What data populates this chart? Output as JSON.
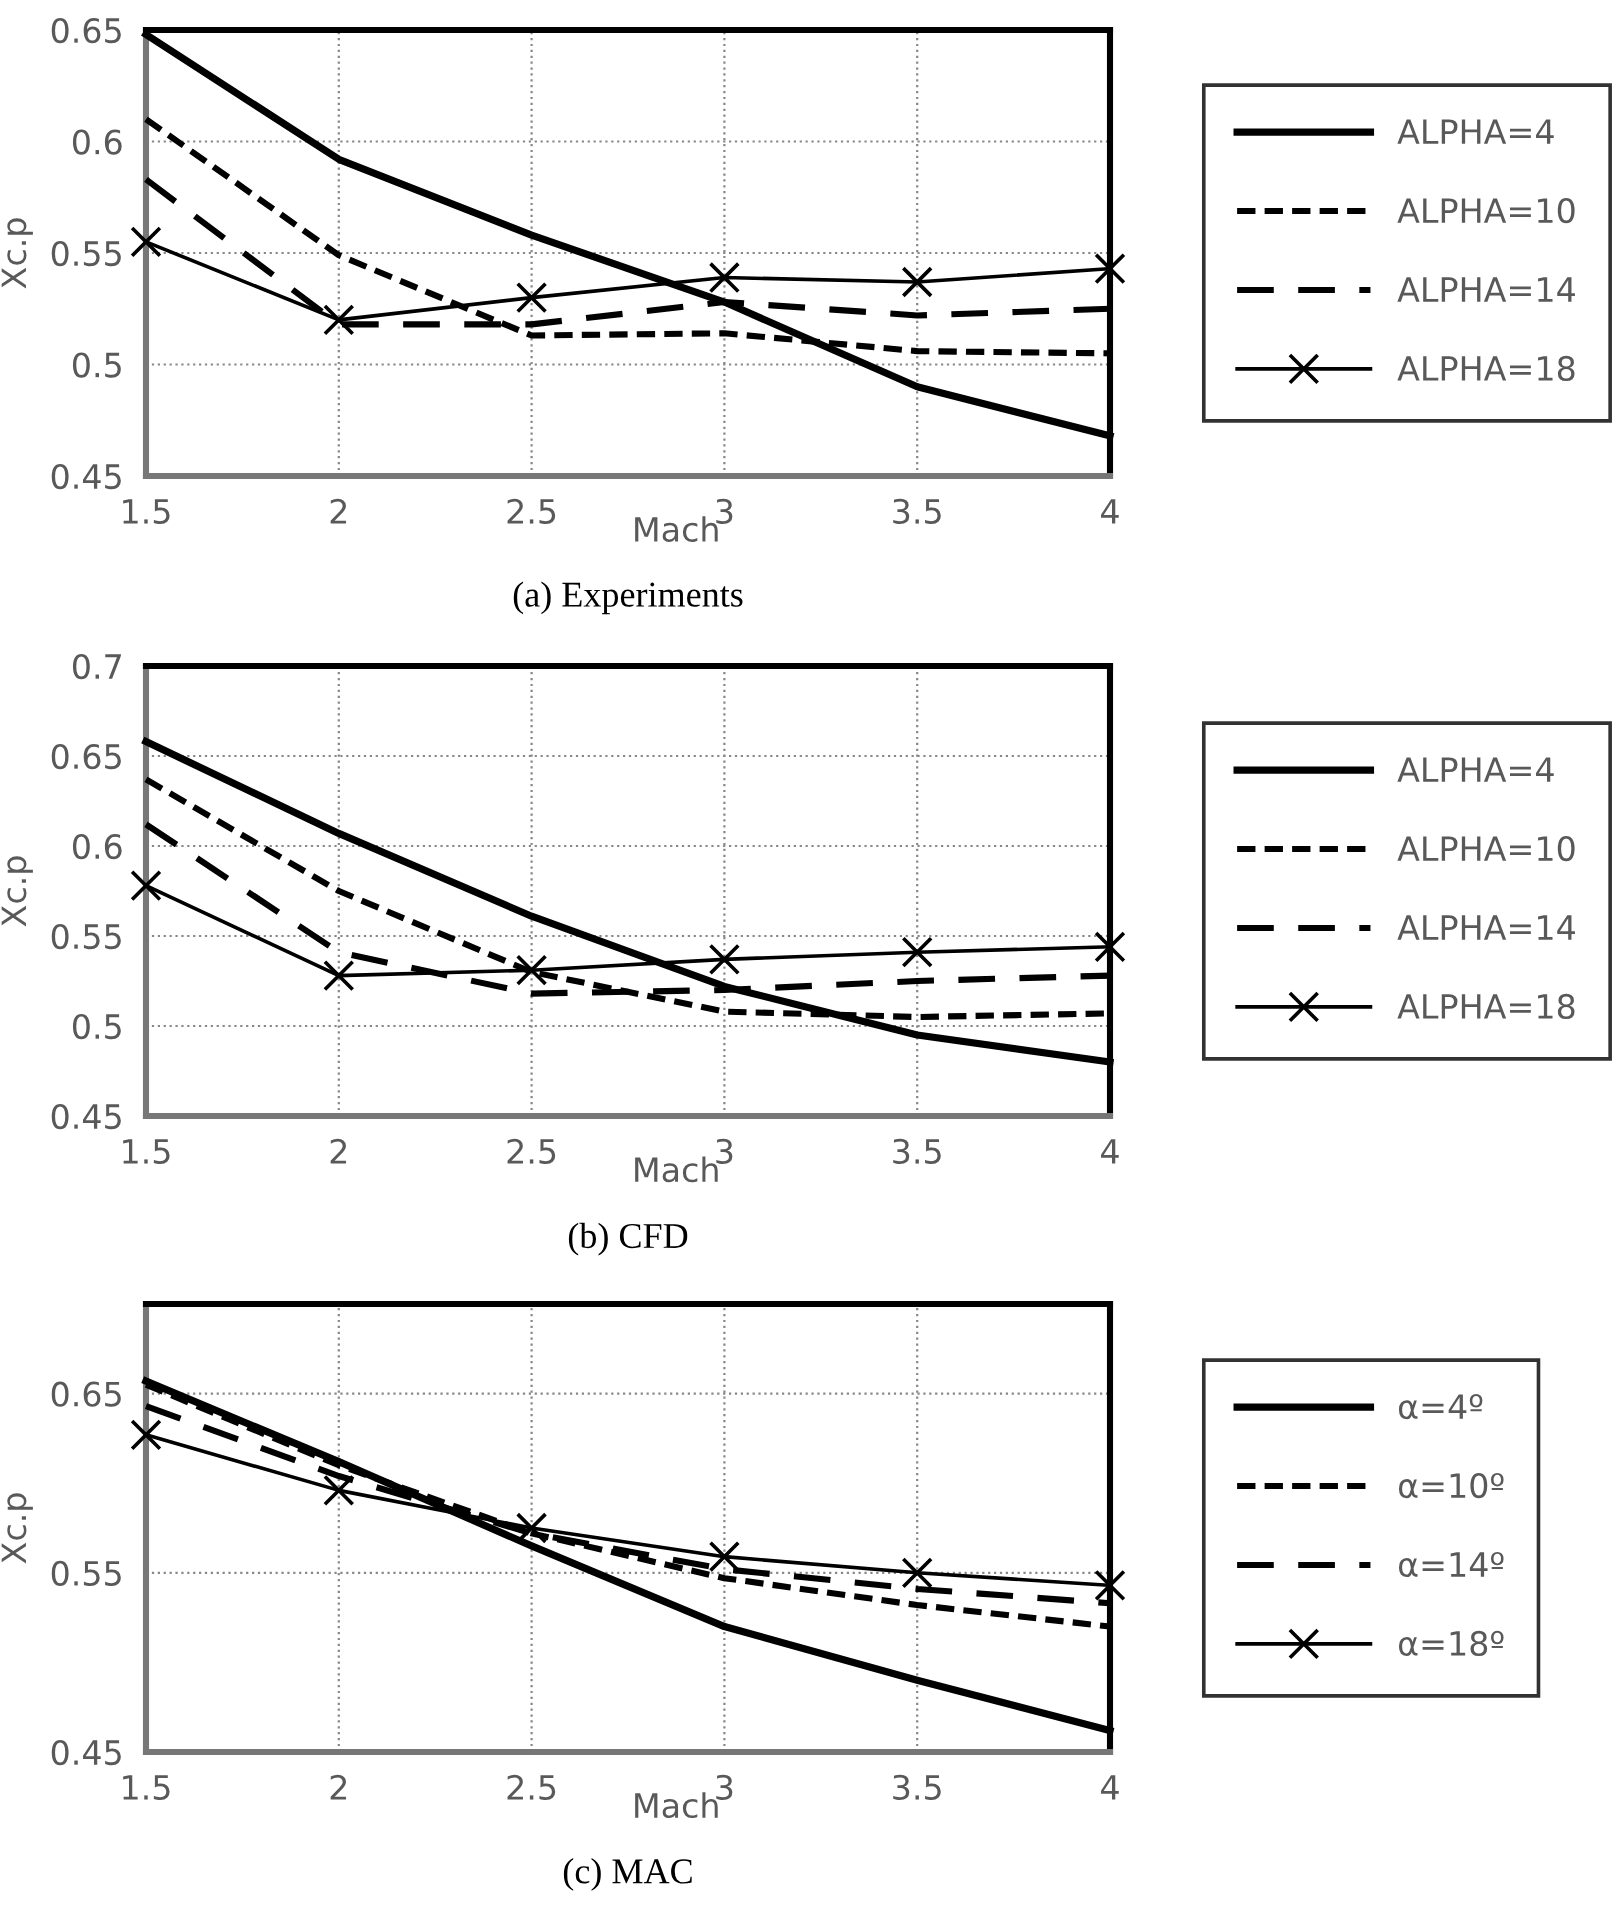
{
  "chart_data": [
    {
      "type": "line",
      "title": "(a) Experiments",
      "xlabel": "Mach",
      "ylabel": "Xc.p",
      "x": [
        1.5,
        2,
        2.5,
        3,
        3.5,
        4
      ],
      "xlim": [
        1.5,
        4
      ],
      "xticks": [
        1.5,
        2,
        2.5,
        3,
        3.5,
        4
      ],
      "ylim": [
        0.45,
        0.65
      ],
      "yticks": [
        0.45,
        0.5,
        0.55,
        0.6,
        0.65
      ],
      "grid": true,
      "legend": "right",
      "series": [
        {
          "name": "ALPHA=4",
          "color": "#000000",
          "line_style": "solid",
          "marker": "none",
          "values": [
            0.648,
            0.592,
            0.558,
            0.528,
            0.49,
            0.468
          ]
        },
        {
          "name": "ALPHA=10",
          "color": "#000000",
          "line_style": "dotted",
          "marker": "none",
          "values": [
            0.61,
            0.549,
            0.513,
            0.514,
            0.506,
            0.505
          ]
        },
        {
          "name": "ALPHA=14",
          "color": "#000000",
          "line_style": "dashed",
          "marker": "none",
          "values": [
            0.583,
            0.518,
            0.518,
            0.528,
            0.522,
            0.525
          ]
        },
        {
          "name": "ALPHA=18",
          "color": "#000000",
          "line_style": "solid",
          "marker": "cross",
          "values": [
            0.555,
            0.52,
            0.53,
            0.539,
            0.537,
            0.543
          ]
        }
      ]
    },
    {
      "type": "line",
      "title": "(b) CFD",
      "xlabel": "Mach",
      "ylabel": "Xc.p",
      "x": [
        1.5,
        2,
        2.5,
        3,
        3.5,
        4
      ],
      "xlim": [
        1.5,
        4
      ],
      "xticks": [
        1.5,
        2,
        2.5,
        3,
        3.5,
        4
      ],
      "ylim": [
        0.45,
        0.7
      ],
      "yticks": [
        0.45,
        0.5,
        0.55,
        0.6,
        0.65,
        0.7
      ],
      "grid": true,
      "legend": "right",
      "series": [
        {
          "name": "ALPHA=4",
          "color": "#000000",
          "line_style": "solid",
          "marker": "none",
          "values": [
            0.658,
            0.607,
            0.561,
            0.522,
            0.495,
            0.48
          ]
        },
        {
          "name": "ALPHA=10",
          "color": "#000000",
          "line_style": "dotted",
          "marker": "none",
          "values": [
            0.637,
            0.575,
            0.53,
            0.508,
            0.505,
            0.507
          ]
        },
        {
          "name": "ALPHA=14",
          "color": "#000000",
          "line_style": "dashed",
          "marker": "none",
          "values": [
            0.612,
            0.541,
            0.518,
            0.52,
            0.525,
            0.528
          ]
        },
        {
          "name": "ALPHA=18",
          "color": "#000000",
          "line_style": "solid",
          "marker": "cross",
          "values": [
            0.578,
            0.528,
            0.531,
            0.537,
            0.541,
            0.544
          ]
        }
      ]
    },
    {
      "type": "line",
      "title": "(c) MAC",
      "xlabel": "Mach",
      "ylabel": "Xc.p",
      "x": [
        1.5,
        2,
        2.5,
        3,
        3.5,
        4
      ],
      "xlim": [
        1.5,
        4
      ],
      "xticks": [
        1.5,
        2,
        2.5,
        3,
        3.5,
        4
      ],
      "ylim": [
        0.45,
        0.7
      ],
      "yticks": [
        0.45,
        0.55,
        0.65
      ],
      "grid": true,
      "legend": "right",
      "series": [
        {
          "name": "α=4º",
          "color": "#000000",
          "line_style": "solid",
          "marker": "none",
          "values": [
            0.657,
            0.612,
            0.565,
            0.52,
            0.49,
            0.462
          ]
        },
        {
          "name": "α=10º",
          "color": "#000000",
          "line_style": "dotted",
          "marker": "none",
          "values": [
            0.655,
            0.61,
            0.572,
            0.547,
            0.532,
            0.52
          ]
        },
        {
          "name": "α=14º",
          "color": "#000000",
          "line_style": "dashed",
          "marker": "none",
          "values": [
            0.643,
            0.604,
            0.572,
            0.552,
            0.541,
            0.533
          ]
        },
        {
          "name": "α=18º",
          "color": "#000000",
          "line_style": "solid",
          "marker": "cross",
          "values": [
            0.627,
            0.596,
            0.575,
            0.559,
            0.55,
            0.543
          ]
        }
      ]
    }
  ]
}
